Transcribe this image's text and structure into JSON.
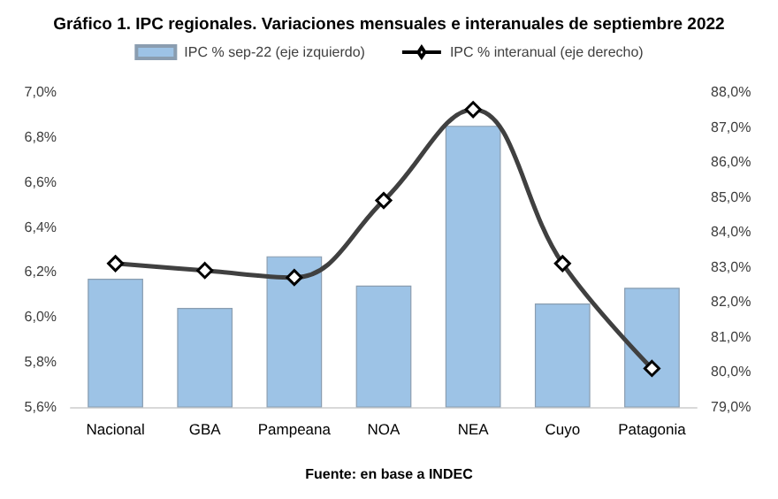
{
  "chart_data": {
    "type": "bar",
    "title": "Gráfico 1. IPC regionales. Variaciones mensuales e interanuales de septiembre 2022",
    "categories": [
      "Nacional",
      "GBA",
      "Pampeana",
      "NOA",
      "NEA",
      "Cuyo",
      "Patagonia"
    ],
    "series": [
      {
        "name": "IPC % sep-22 (eje izquierdo)",
        "color": "#9dc3e6",
        "values": [
          6.17,
          6.04,
          6.27,
          6.14,
          6.85,
          6.06,
          6.13
        ]
      },
      {
        "name": "IPC % interanual (eje derecho)",
        "type": "line",
        "axis": "y2",
        "color": "#404040",
        "marker": "diamond",
        "values": [
          83.1,
          82.9,
          82.7,
          84.9,
          87.5,
          83.1,
          80.1
        ]
      }
    ],
    "ylim": [
      5.6,
      7.0
    ],
    "yticks": [
      {
        "value": 5.6,
        "label": "5,6%"
      },
      {
        "value": 5.8,
        "label": "5,8%"
      },
      {
        "value": 6.0,
        "label": "6,0%"
      },
      {
        "value": 6.2,
        "label": "6,2%"
      },
      {
        "value": 6.4,
        "label": "6,4%"
      },
      {
        "value": 6.6,
        "label": "6,6%"
      },
      {
        "value": 6.8,
        "label": "6,8%"
      },
      {
        "value": 7.0,
        "label": "7,0%"
      }
    ],
    "y2lim": [
      79,
      88
    ],
    "y2ticks": [
      {
        "value": 79,
        "label": "79,0%"
      },
      {
        "value": 80,
        "label": "80,0%"
      },
      {
        "value": 81,
        "label": "81,0%"
      },
      {
        "value": 82,
        "label": "82,0%"
      },
      {
        "value": 83,
        "label": "83,0%"
      },
      {
        "value": 84,
        "label": "84,0%"
      },
      {
        "value": 85,
        "label": "85,0%"
      },
      {
        "value": 86,
        "label": "86,0%"
      },
      {
        "value": 87,
        "label": "87,0%"
      },
      {
        "value": 88,
        "label": "88,0%"
      }
    ],
    "grid": false,
    "legend": "top",
    "annotations": [
      "Fuente: en base a INDEC"
    ]
  }
}
